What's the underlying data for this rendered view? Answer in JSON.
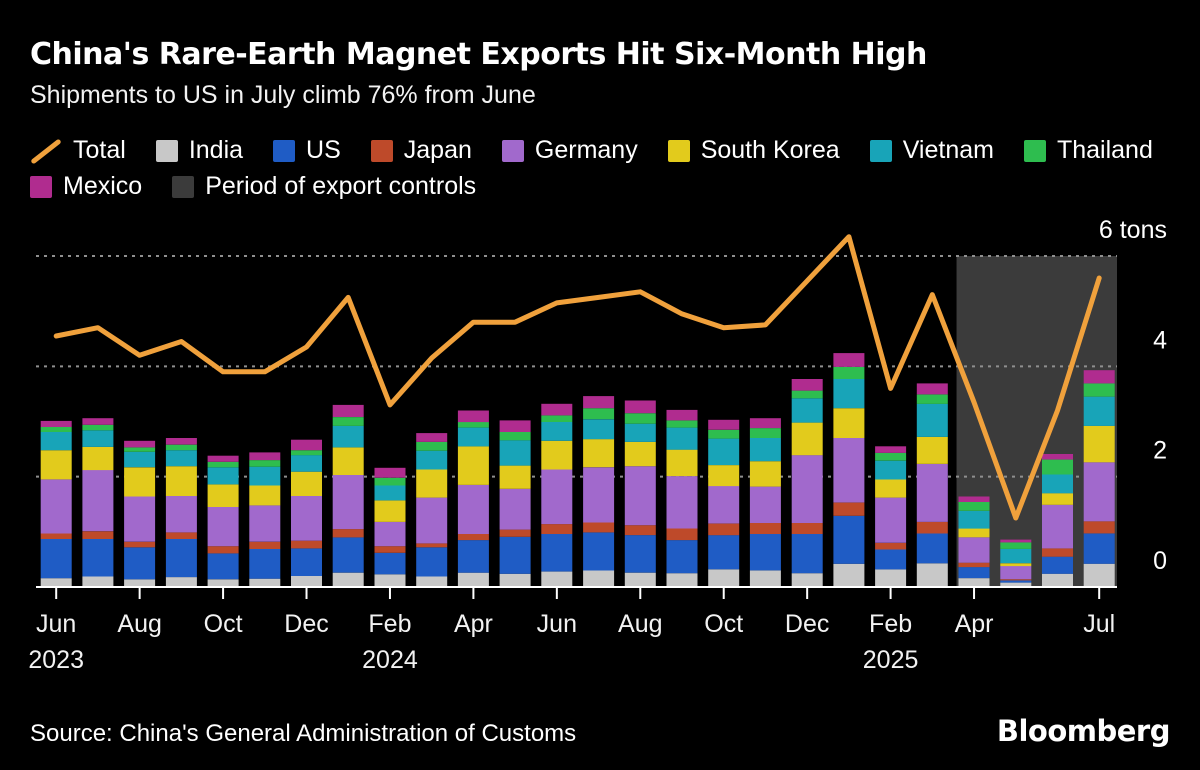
{
  "header": {
    "title": "China's Rare-Earth Magnet Exports Hit Six-Month High",
    "subtitle": "Shipments to US in July climb 76% from June"
  },
  "legend": {
    "rows": [
      [
        {
          "slug": "total",
          "label": "Total",
          "type": "line",
          "color": "#F0A13C"
        },
        {
          "slug": "india",
          "label": "India",
          "type": "box",
          "color": "#C8C8C8"
        },
        {
          "slug": "us",
          "label": "US",
          "type": "box",
          "color": "#1F5CC5"
        },
        {
          "slug": "japan",
          "label": "Japan",
          "type": "box",
          "color": "#BE4A2A"
        },
        {
          "slug": "germany",
          "label": "Germany",
          "type": "box",
          "color": "#A169CC"
        },
        {
          "slug": "south-korea",
          "label": "South Korea",
          "type": "box",
          "color": "#E2CB1C"
        },
        {
          "slug": "vietnam",
          "label": "Vietnam",
          "type": "box",
          "color": "#18A4B8"
        },
        {
          "slug": "thailand",
          "label": "Thailand",
          "type": "box",
          "color": "#2EBD4F"
        }
      ],
      [
        {
          "slug": "mexico",
          "label": "Mexico",
          "type": "box",
          "color": "#B02C8F"
        },
        {
          "slug": "period-of-export-controls",
          "label": "Period of export controls",
          "type": "box",
          "color": "#3B3B3B"
        }
      ]
    ]
  },
  "chart_data": {
    "type": "stacked_bar_with_line",
    "unit": "tons",
    "categories": [
      "Jun 2023",
      "Jul 2023",
      "Aug 2023",
      "Sep 2023",
      "Oct 2023",
      "Nov 2023",
      "Dec 2023",
      "Jan 2024",
      "Feb 2024",
      "Mar 2024",
      "Apr 2024",
      "May 2024",
      "Jun 2024",
      "Jul 2024",
      "Aug 2024",
      "Sep 2024",
      "Oct 2024",
      "Nov 2024",
      "Dec 2024",
      "Jan 2025",
      "Feb 2025",
      "Mar 2025",
      "Apr 2025",
      "May 2025",
      "Jun 2025",
      "Jul 2025"
    ],
    "series": [
      {
        "name": "India",
        "color": "#C8C8C8",
        "values": [
          0.16,
          0.19,
          0.14,
          0.18,
          0.14,
          0.15,
          0.2,
          0.26,
          0.23,
          0.19,
          0.26,
          0.24,
          0.28,
          0.3,
          0.26,
          0.25,
          0.32,
          0.3,
          0.25,
          0.42,
          0.32,
          0.43,
          0.16,
          0.08,
          0.24,
          0.42
        ]
      },
      {
        "name": "US",
        "color": "#1F5CC5",
        "values": [
          0.71,
          0.68,
          0.58,
          0.69,
          0.47,
          0.54,
          0.5,
          0.64,
          0.39,
          0.53,
          0.59,
          0.67,
          0.68,
          0.69,
          0.68,
          0.6,
          0.62,
          0.66,
          0.71,
          0.87,
          0.36,
          0.54,
          0.2,
          0.04,
          0.31,
          0.55
        ]
      },
      {
        "name": "Japan",
        "color": "#BE4A2A",
        "values": [
          0.1,
          0.14,
          0.1,
          0.12,
          0.13,
          0.13,
          0.14,
          0.15,
          0.12,
          0.07,
          0.11,
          0.13,
          0.18,
          0.18,
          0.18,
          0.21,
          0.21,
          0.2,
          0.2,
          0.24,
          0.12,
          0.21,
          0.08,
          0.02,
          0.15,
          0.22
        ]
      },
      {
        "name": "Germany",
        "color": "#A169CC",
        "values": [
          0.98,
          1.11,
          0.82,
          0.66,
          0.71,
          0.66,
          0.81,
          0.98,
          0.44,
          0.83,
          0.89,
          0.74,
          0.99,
          1.0,
          1.07,
          0.95,
          0.68,
          0.66,
          1.23,
          1.17,
          0.82,
          1.05,
          0.46,
          0.24,
          0.79,
          1.07
        ]
      },
      {
        "name": "South Korea",
        "color": "#E2CB1C",
        "values": [
          0.53,
          0.42,
          0.53,
          0.54,
          0.41,
          0.36,
          0.44,
          0.5,
          0.39,
          0.51,
          0.7,
          0.42,
          0.52,
          0.51,
          0.44,
          0.48,
          0.38,
          0.46,
          0.59,
          0.54,
          0.33,
          0.49,
          0.16,
          0.05,
          0.21,
          0.66
        ]
      },
      {
        "name": "Vietnam",
        "color": "#18A4B8",
        "values": [
          0.33,
          0.3,
          0.28,
          0.29,
          0.31,
          0.34,
          0.3,
          0.39,
          0.27,
          0.34,
          0.34,
          0.46,
          0.34,
          0.36,
          0.33,
          0.4,
          0.48,
          0.42,
          0.44,
          0.53,
          0.34,
          0.6,
          0.32,
          0.26,
          0.34,
          0.53
        ]
      },
      {
        "name": "Thailand",
        "color": "#2EBD4F",
        "values": [
          0.09,
          0.1,
          0.08,
          0.1,
          0.1,
          0.12,
          0.09,
          0.16,
          0.14,
          0.16,
          0.1,
          0.15,
          0.12,
          0.2,
          0.19,
          0.13,
          0.16,
          0.18,
          0.14,
          0.22,
          0.14,
          0.17,
          0.16,
          0.12,
          0.27,
          0.24
        ]
      },
      {
        "name": "Mexico",
        "color": "#B02C8F",
        "values": [
          0.11,
          0.12,
          0.12,
          0.12,
          0.11,
          0.14,
          0.19,
          0.22,
          0.18,
          0.16,
          0.21,
          0.21,
          0.21,
          0.22,
          0.23,
          0.19,
          0.18,
          0.18,
          0.21,
          0.25,
          0.12,
          0.2,
          0.1,
          0.05,
          0.1,
          0.24
        ]
      }
    ],
    "line_series": {
      "name": "Total",
      "color": "#F0A13C",
      "values": [
        4.55,
        4.7,
        4.2,
        4.45,
        3.9,
        3.9,
        4.35,
        5.25,
        3.3,
        4.15,
        4.8,
        4.8,
        5.15,
        5.25,
        5.35,
        4.95,
        4.7,
        4.75,
        5.55,
        6.35,
        3.6,
        5.3,
        3.35,
        1.25,
        3.2,
        5.6
      ]
    },
    "ylim": [
      0,
      6
    ],
    "yticks": [
      0,
      2,
      4,
      6
    ],
    "ytick_labels": [
      "0",
      "2",
      "4",
      "6 tons"
    ],
    "grid": "dashed horizontal at 2, 4, 6",
    "x_ticks": [
      {
        "index": 0,
        "label": "Jun",
        "year": "2023"
      },
      {
        "index": 2,
        "label": "Aug"
      },
      {
        "index": 4,
        "label": "Oct"
      },
      {
        "index": 6,
        "label": "Dec"
      },
      {
        "index": 8,
        "label": "Feb",
        "year": "2024"
      },
      {
        "index": 10,
        "label": "Apr"
      },
      {
        "index": 12,
        "label": "Jun"
      },
      {
        "index": 14,
        "label": "Aug"
      },
      {
        "index": 16,
        "label": "Oct"
      },
      {
        "index": 18,
        "label": "Dec"
      },
      {
        "index": 20,
        "label": "Feb",
        "year": "2025"
      },
      {
        "index": 22,
        "label": "Apr"
      },
      {
        "index": 25,
        "label": "Jul"
      }
    ],
    "shaded_region": {
      "label": "Period of export controls",
      "start_index": 22,
      "end_index": 25,
      "color": "#3B3B3B"
    }
  },
  "footer": {
    "source": "Source: China's General Administration of Customs",
    "brand": "Bloomberg"
  }
}
